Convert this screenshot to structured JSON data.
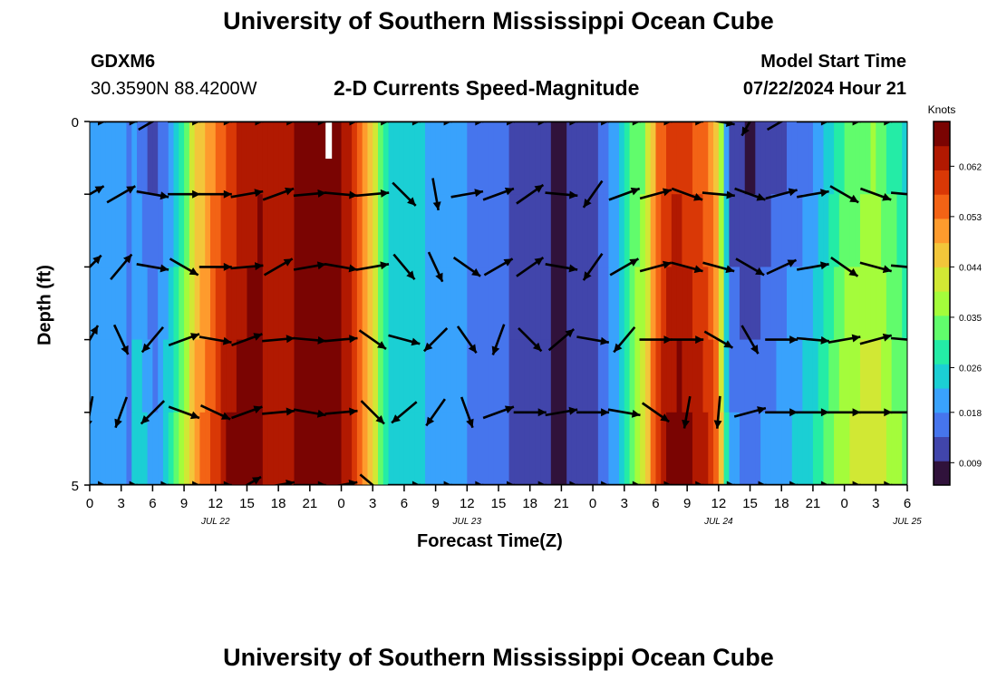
{
  "header": {
    "title": "University of Southern Mississippi Ocean Cube",
    "station": "GDXM6",
    "location": "30.3590N  88.4200W",
    "plot_title": "2-D Currents Speed-Magnitude",
    "model_label": "Model Start Time",
    "model_time": "07/22/2024 Hour 21"
  },
  "footer": {
    "title": "University of Southern Mississippi Ocean Cube"
  },
  "chart_data": {
    "type": "heatmap",
    "title": "2-D Currents Speed-Magnitude",
    "xlabel": "Forecast Time(Z)",
    "ylabel": "Depth (ft)",
    "y_tick_labels": [
      "0",
      "5"
    ],
    "ylim": [
      0,
      5
    ],
    "x_tick_labels": [
      "0",
      "3",
      "6",
      "9",
      "12",
      "15",
      "18",
      "21",
      "0",
      "3",
      "6",
      "9",
      "12",
      "15",
      "18",
      "21",
      "0",
      "3",
      "6",
      "9",
      "12",
      "15",
      "18",
      "21",
      "0",
      "3",
      "6"
    ],
    "date_labels": [
      {
        "label": "JUL 22",
        "hour": 12
      },
      {
        "label": "JUL 23",
        "hour": 36
      },
      {
        "label": "JUL 24",
        "hour": 60
      },
      {
        "label": "JUL 25",
        "hour": 78
      }
    ],
    "xlim_hours": [
      0,
      78
    ],
    "colorbar": {
      "unit": "Knots",
      "min": 0.005,
      "max": 0.07,
      "ticks": [
        "0.009",
        "0.018",
        "0.026",
        "0.035",
        "0.044",
        "0.053",
        "0.062"
      ],
      "tick_values": [
        0.009,
        0.018,
        0.026,
        0.035,
        0.044,
        0.053,
        0.062
      ]
    },
    "colors": [
      "#30123b",
      "#4145ab",
      "#4675ed",
      "#39a2fc",
      "#1bcfd4",
      "#24eca6",
      "#61fc6c",
      "#a4fc3b",
      "#d1e834",
      "#f3c63a",
      "#fe9b2d",
      "#f36315",
      "#d93806",
      "#b11901",
      "#7a0402"
    ],
    "depth_rows": [
      0.5,
      1.5,
      2.5,
      3.5,
      4.5
    ],
    "speed_profile_hours": [
      0,
      2,
      4,
      5,
      6,
      7,
      8,
      9,
      10,
      12,
      13,
      14,
      15,
      16,
      17,
      18,
      20,
      21,
      22,
      23,
      24,
      25,
      27,
      28,
      29,
      30,
      31,
      33,
      36,
      39,
      42,
      45,
      48,
      50,
      51,
      53,
      54,
      55,
      56,
      57,
      58,
      59,
      60,
      61,
      62,
      63,
      64,
      66,
      69,
      72,
      75,
      76,
      78
    ],
    "speed_profile_knots": [
      0.022,
      0.02,
      0.017,
      0.014,
      0.009,
      0.013,
      0.02,
      0.028,
      0.04,
      0.05,
      0.055,
      0.058,
      0.06,
      0.062,
      0.064,
      0.065,
      0.066,
      0.067,
      0.068,
      0.068,
      0.066,
      0.062,
      0.045,
      0.03,
      0.024,
      0.026,
      0.024,
      0.021,
      0.018,
      0.015,
      0.01,
      0.009,
      0.012,
      0.02,
      0.028,
      0.04,
      0.055,
      0.062,
      0.064,
      0.063,
      0.06,
      0.058,
      0.05,
      0.016,
      0.014,
      0.012,
      0.014,
      0.017,
      0.022,
      0.035,
      0.04,
      0.035,
      0.03
    ],
    "depth_offsets_knots": [
      [
        0.0,
        0.0,
        0.0,
        0.0,
        0.0
      ],
      [
        0.003,
        0.004,
        0.006,
        0.008,
        0.01
      ],
      [
        -0.004,
        -0.002,
        0.0,
        0.002,
        0.004
      ]
    ],
    "vector_hours": [
      0,
      3,
      6,
      9,
      12,
      15,
      18,
      21,
      24,
      27,
      30,
      33,
      36,
      39,
      42,
      45,
      48,
      51,
      54,
      57,
      60,
      63,
      66,
      69,
      72,
      75,
      78
    ],
    "vector_rows": [
      {
        "depth": 0.0,
        "dirs_deg": [
          90,
          90,
          60,
          90,
          90,
          90,
          90,
          90,
          90,
          90,
          90,
          90,
          90,
          90,
          90,
          90,
          90,
          90,
          90,
          90,
          100,
          210,
          60,
          90,
          90,
          90,
          90
        ]
      },
      {
        "depth": 1.0,
        "dirs_deg": [
          60,
          60,
          100,
          90,
          90,
          80,
          70,
          85,
          95,
          85,
          135,
          170,
          80,
          70,
          55,
          95,
          215,
          70,
          75,
          110,
          95,
          110,
          75,
          80,
          120,
          110,
          95
        ]
      },
      {
        "depth": 2.0,
        "dirs_deg": [
          45,
          40,
          100,
          120,
          90,
          85,
          60,
          80,
          100,
          80,
          140,
          155,
          125,
          60,
          55,
          100,
          215,
          60,
          75,
          105,
          105,
          120,
          65,
          80,
          125,
          105,
          95
        ]
      },
      {
        "depth": 3.0,
        "dirs_deg": [
          30,
          155,
          220,
          70,
          100,
          70,
          85,
          95,
          85,
          125,
          105,
          225,
          145,
          200,
          135,
          50,
          100,
          220,
          90,
          90,
          120,
          150,
          90,
          95,
          80,
          75,
          95
        ]
      },
      {
        "depth": 4.0,
        "dirs_deg": [
          190,
          200,
          225,
          110,
          115,
          70,
          85,
          100,
          85,
          135,
          230,
          215,
          160,
          70,
          90,
          80,
          90,
          100,
          125,
          190,
          185,
          75,
          90,
          90,
          90,
          90,
          90
        ]
      },
      {
        "depth": 5.0,
        "dirs_deg": [
          90,
          90,
          90,
          90,
          90,
          60,
          80,
          90,
          80,
          130,
          90,
          90,
          90,
          90,
          90,
          90,
          90,
          90,
          90,
          90,
          90,
          90,
          90,
          90,
          90,
          90,
          90
        ]
      }
    ],
    "vector_hours_fine": {
      "row1_first": 0,
      "row2_first": 0,
      "row3_first": 0,
      "row4_first": 0
    }
  }
}
